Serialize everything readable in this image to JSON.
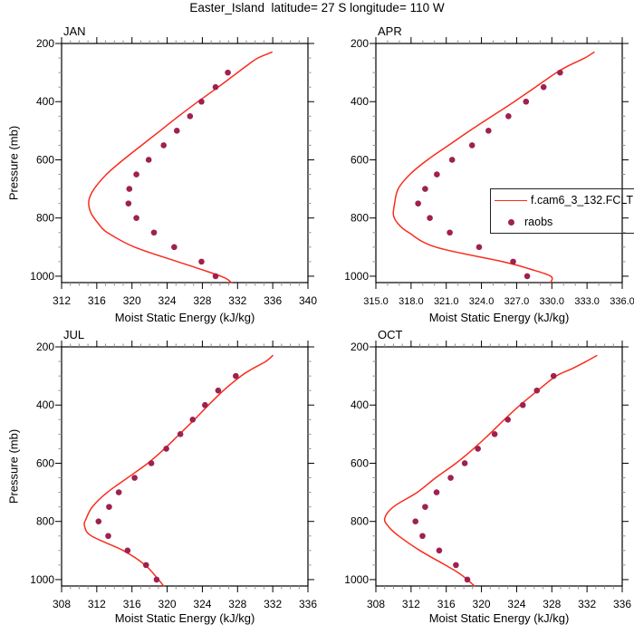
{
  "title": "Easter_Island  latitude= 27 S longitude= 110 W",
  "legend": {
    "entries": [
      {
        "type": "line",
        "label": "f.cam6_3_132.FCLT"
      },
      {
        "type": "marker",
        "label": "raobs"
      }
    ]
  },
  "colors": {
    "model": "#f92c1d",
    "obs": "#9e2150",
    "axis": "#000000",
    "minor_tick": "#8f8f8f",
    "text": "#000000"
  },
  "chart_data": {
    "type": "line+scatter",
    "title": "Easter_Island  latitude= 27 S longitude= 110 W",
    "xlabel": "Moist Static Energy (kJ/kg)",
    "ylabel": "Pressure (mb)",
    "grid": false,
    "legend_position": "right-middle of APR panel, clipped at image edge",
    "series_names": [
      "f.cam6_3_132.FCLT",
      "raobs"
    ],
    "y_axis": {
      "lim": [
        200,
        1022
      ],
      "ticks": [
        200,
        400,
        600,
        800,
        1000
      ],
      "minor_step": 50,
      "increasing_downward": true
    },
    "panels": [
      {
        "label": "JAN",
        "xlim": [
          312,
          340
        ],
        "xticks": [
          312,
          316,
          320,
          324,
          328,
          332,
          336,
          340
        ],
        "xticklabels": [
          "312",
          "316",
          "320",
          "324",
          "328",
          "332",
          "336",
          "340"
        ],
        "x_minor_step": 1,
        "model_line": [
          [
            230,
            335.9
          ],
          [
            250,
            334.3
          ],
          [
            275,
            333.1
          ],
          [
            300,
            332.0
          ],
          [
            350,
            329.8
          ],
          [
            400,
            327.5
          ],
          [
            450,
            325.3
          ],
          [
            500,
            323.2
          ],
          [
            550,
            321.1
          ],
          [
            600,
            319.0
          ],
          [
            650,
            317.1
          ],
          [
            700,
            315.7
          ],
          [
            740,
            315.1
          ],
          [
            780,
            315.3
          ],
          [
            820,
            316.2
          ],
          [
            850,
            317.2
          ],
          [
            900,
            320.3
          ],
          [
            950,
            325.2
          ],
          [
            975,
            327.7
          ],
          [
            1000,
            330.1
          ],
          [
            1012,
            330.9
          ],
          [
            1022,
            331.3
          ]
        ],
        "obs_pressure": [
          300,
          350,
          400,
          450,
          500,
          550,
          600,
          650,
          700,
          750,
          800,
          850,
          900,
          950,
          1000
        ],
        "obs_values": [
          330.9,
          329.5,
          327.9,
          326.6,
          325.1,
          323.6,
          321.9,
          320.5,
          319.7,
          319.6,
          320.5,
          322.5,
          324.8,
          327.9,
          329.5
        ]
      },
      {
        "label": "APR",
        "xlim": [
          315,
          336
        ],
        "xticks": [
          315,
          318,
          321,
          324,
          327,
          330,
          333,
          336
        ],
        "xticklabels": [
          "315.0",
          "318.0",
          "321.0",
          "324.0",
          "327.0",
          "330.0",
          "333.0",
          "336.0"
        ],
        "x_minor_step": 1,
        "model_line": [
          [
            230,
            333.6
          ],
          [
            250,
            332.8
          ],
          [
            275,
            331.5
          ],
          [
            300,
            330.4
          ],
          [
            350,
            328.6
          ],
          [
            400,
            326.8
          ],
          [
            450,
            324.9
          ],
          [
            500,
            323.0
          ],
          [
            550,
            321.2
          ],
          [
            600,
            319.4
          ],
          [
            650,
            317.9
          ],
          [
            700,
            316.9
          ],
          [
            750,
            316.6
          ],
          [
            790,
            316.5
          ],
          [
            820,
            316.9
          ],
          [
            850,
            317.8
          ],
          [
            900,
            320.1
          ],
          [
            950,
            325.8
          ],
          [
            975,
            328.1
          ],
          [
            1000,
            329.9
          ],
          [
            1022,
            329.9
          ]
        ],
        "obs_pressure": [
          300,
          350,
          400,
          450,
          500,
          550,
          600,
          650,
          700,
          750,
          800,
          850,
          900,
          950,
          1000
        ],
        "obs_values": [
          330.7,
          329.3,
          327.8,
          326.3,
          324.6,
          323.2,
          321.5,
          320.2,
          319.2,
          318.6,
          319.6,
          321.3,
          323.8,
          326.7,
          327.9
        ]
      },
      {
        "label": "JUL",
        "xlim": [
          308,
          336
        ],
        "xticks": [
          308,
          312,
          316,
          320,
          324,
          328,
          332,
          336
        ],
        "xticklabels": [
          "308",
          "312",
          "316",
          "320",
          "324",
          "328",
          "332",
          "336"
        ],
        "x_minor_step": 1,
        "model_line": [
          [
            230,
            332.0
          ],
          [
            250,
            331.2
          ],
          [
            275,
            329.7
          ],
          [
            300,
            328.4
          ],
          [
            350,
            326.4
          ],
          [
            400,
            324.7
          ],
          [
            450,
            323.1
          ],
          [
            500,
            321.4
          ],
          [
            550,
            319.7
          ],
          [
            600,
            317.8
          ],
          [
            650,
            315.5
          ],
          [
            700,
            313.2
          ],
          [
            750,
            311.5
          ],
          [
            790,
            310.8
          ],
          [
            815,
            310.6
          ],
          [
            850,
            311.4
          ],
          [
            900,
            315.0
          ],
          [
            950,
            317.5
          ],
          [
            1000,
            319.0
          ],
          [
            1022,
            319.6
          ]
        ],
        "obs_pressure": [
          300,
          350,
          400,
          450,
          500,
          550,
          600,
          650,
          700,
          750,
          800,
          850,
          900,
          950,
          1000
        ],
        "obs_values": [
          327.8,
          325.8,
          324.3,
          322.9,
          321.5,
          319.9,
          318.2,
          316.3,
          314.5,
          313.4,
          312.2,
          313.3,
          315.5,
          317.6,
          318.8
        ]
      },
      {
        "label": "OCT",
        "xlim": [
          308,
          336
        ],
        "xticks": [
          308,
          312,
          316,
          320,
          324,
          328,
          332,
          336
        ],
        "xticklabels": [
          "308",
          "312",
          "316",
          "320",
          "324",
          "328",
          "332",
          "336"
        ],
        "x_minor_step": 1,
        "model_line": [
          [
            230,
            333.1
          ],
          [
            250,
            331.9
          ],
          [
            275,
            330.3
          ],
          [
            300,
            328.5
          ],
          [
            350,
            326.4
          ],
          [
            400,
            324.4
          ],
          [
            450,
            322.6
          ],
          [
            500,
            320.9
          ],
          [
            550,
            319.1
          ],
          [
            600,
            317.1
          ],
          [
            650,
            314.8
          ],
          [
            700,
            312.7
          ],
          [
            750,
            310.0
          ],
          [
            790,
            309.0
          ],
          [
            820,
            309.5
          ],
          [
            850,
            310.6
          ],
          [
            900,
            313.0
          ],
          [
            950,
            315.9
          ],
          [
            975,
            317.3
          ],
          [
            1000,
            318.4
          ],
          [
            1022,
            319.2
          ]
        ],
        "obs_pressure": [
          300,
          350,
          400,
          450,
          500,
          550,
          600,
          650,
          700,
          750,
          800,
          850,
          900,
          950,
          1000
        ],
        "obs_values": [
          328.2,
          326.3,
          324.7,
          323.0,
          321.5,
          319.6,
          318.1,
          316.5,
          314.9,
          313.6,
          312.5,
          313.3,
          315.2,
          317.1,
          318.4
        ]
      }
    ]
  }
}
